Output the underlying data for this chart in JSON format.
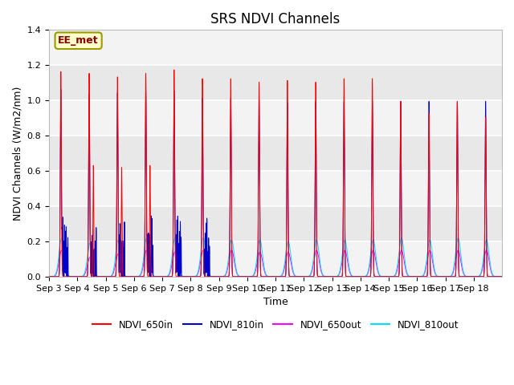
{
  "title": "SRS NDVI Channels",
  "xlabel": "Time",
  "ylabel": "NDVI Channels (W/m2/nm)",
  "ylim": [
    0.0,
    1.4
  ],
  "num_days": 16,
  "annotation_text": "EE_met",
  "colors": {
    "NDVI_650in": "#ff0000",
    "NDVI_810in": "#0000cc",
    "NDVI_650out": "#ff00ff",
    "NDVI_810out": "#00ddff"
  },
  "daily_peaks_650in": [
    1.17,
    1.16,
    1.14,
    1.16,
    1.18,
    1.13,
    1.13,
    1.11,
    1.12,
    1.11,
    1.13,
    1.13,
    1.0,
    0.93,
    1.0,
    0.91
  ],
  "daily_peaks_810in": [
    1.07,
    1.04,
    1.05,
    1.06,
    1.06,
    1.02,
    1.02,
    1.01,
    0.99,
    1.0,
    1.0,
    1.0,
    1.0,
    1.0,
    1.0,
    1.0
  ],
  "daily_peaks_650out": [
    0.15,
    0.11,
    0.13,
    0.15,
    0.14,
    0.15,
    0.15,
    0.14,
    0.14,
    0.15,
    0.15,
    0.15,
    0.15,
    0.15,
    0.15,
    0.15
  ],
  "daily_peaks_810out": [
    0.22,
    0.19,
    0.21,
    0.22,
    0.22,
    0.22,
    0.21,
    0.21,
    0.2,
    0.21,
    0.21,
    0.21,
    0.22,
    0.21,
    0.22,
    0.21
  ],
  "tick_labels": [
    "Sep 3",
    "Sep 4",
    "Sep 5",
    "Sep 6",
    "Sep 7",
    "Sep 8",
    "Sep 9",
    "Sep 10",
    "Sep 11",
    "Sep 12",
    "Sep 13",
    "Sep 14",
    "Sep 15",
    "Sep 16",
    "Sep 17",
    "Sep 18"
  ],
  "title_fontsize": 12,
  "axis_fontsize": 9,
  "tick_fontsize": 8,
  "plot_bg_color": "#e8e8e8",
  "white_band_color": "#f5f5f5"
}
